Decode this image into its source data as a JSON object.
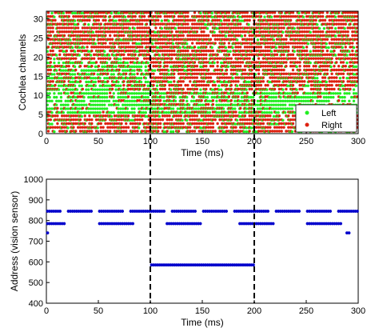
{
  "colors": {
    "left": "#22ee22",
    "right": "#dd2211",
    "address": "#0000cc",
    "marker_line": "#000000"
  },
  "chart_data": [
    {
      "type": "scatter",
      "title": "",
      "xlabel": "Time (ms)",
      "ylabel": "Cochlea channels",
      "xlim": [
        0,
        300
      ],
      "ylim": [
        0,
        32
      ],
      "xticks": [
        0,
        50,
        100,
        150,
        200,
        250,
        300
      ],
      "yticks": [
        0,
        5,
        10,
        15,
        20,
        25,
        30
      ],
      "grid": false,
      "legend_position": "bottom-right",
      "series": [
        {
          "name": "Left",
          "color": "#22ee22",
          "description_channels": [
            0,
            1,
            2,
            3,
            4,
            5,
            6,
            7,
            8,
            9,
            10,
            11,
            12,
            13,
            14,
            15,
            16,
            17,
            18,
            19,
            20,
            21,
            22,
            23,
            24,
            25,
            26,
            27,
            28,
            29,
            30,
            31
          ]
        },
        {
          "name": "Right",
          "color": "#dd2211",
          "description_channels": [
            0,
            1,
            2,
            3,
            4,
            5,
            6,
            7,
            8,
            9,
            10,
            11,
            12,
            13,
            14,
            15,
            16,
            17,
            18,
            19,
            20,
            21,
            22,
            23,
            24,
            25,
            26,
            27,
            28,
            29,
            30,
            31
          ]
        }
      ],
      "vertical_markers": [
        100,
        200
      ]
    },
    {
      "type": "scatter",
      "title": "",
      "xlabel": "Time (ms)",
      "ylabel": "Address (vision sensor)",
      "xlim": [
        0,
        300
      ],
      "ylim": [
        400,
        1000
      ],
      "xticks": [
        0,
        50,
        100,
        150,
        200,
        250,
        300
      ],
      "yticks": [
        400,
        500,
        600,
        700,
        800,
        900,
        1000
      ],
      "grid": false,
      "vertical_markers": [
        100,
        200
      ],
      "segments": [
        {
          "y": 845,
          "x": [
            0,
            15
          ]
        },
        {
          "y": 845,
          "x": [
            20,
            45
          ]
        },
        {
          "y": 845,
          "x": [
            50,
            75
          ]
        },
        {
          "y": 845,
          "x": [
            80,
            100
          ]
        },
        {
          "y": 845,
          "x": [
            100,
            115
          ]
        },
        {
          "y": 845,
          "x": [
            120,
            145
          ]
        },
        {
          "y": 845,
          "x": [
            150,
            175
          ]
        },
        {
          "y": 845,
          "x": [
            180,
            200
          ]
        },
        {
          "y": 845,
          "x": [
            200,
            215
          ]
        },
        {
          "y": 845,
          "x": [
            220,
            245
          ]
        },
        {
          "y": 845,
          "x": [
            250,
            275
          ]
        },
        {
          "y": 845,
          "x": [
            280,
            300
          ]
        },
        {
          "y": 785,
          "x": [
            0,
            18
          ]
        },
        {
          "y": 785,
          "x": [
            50,
            85
          ]
        },
        {
          "y": 785,
          "x": [
            115,
            150
          ]
        },
        {
          "y": 785,
          "x": [
            185,
            220
          ]
        },
        {
          "y": 785,
          "x": [
            250,
            285
          ]
        },
        {
          "y": 740,
          "x": [
            0,
            3
          ]
        },
        {
          "y": 740,
          "x": [
            288,
            292
          ]
        },
        {
          "y": 585,
          "x": [
            100,
            200
          ]
        }
      ]
    }
  ]
}
